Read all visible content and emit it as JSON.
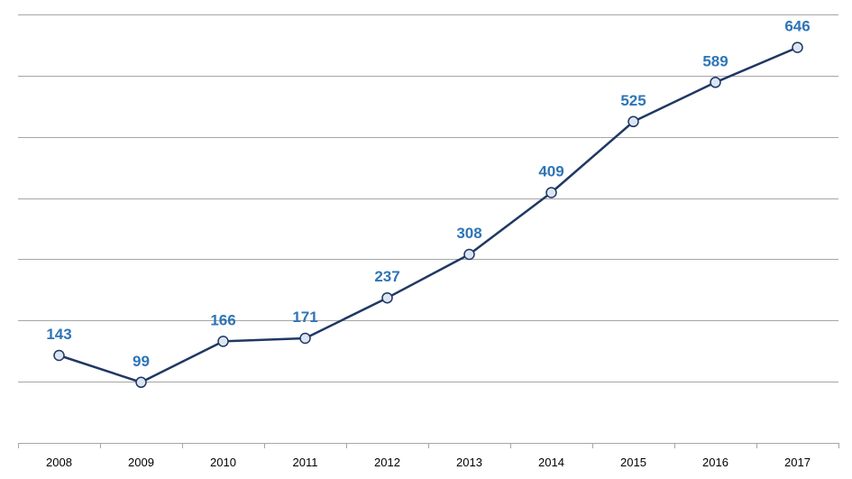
{
  "chart_data": {
    "type": "line",
    "categories": [
      "2008",
      "2009",
      "2010",
      "2011",
      "2012",
      "2013",
      "2014",
      "2015",
      "2016",
      "2017"
    ],
    "values": [
      143,
      99,
      166,
      171,
      237,
      308,
      409,
      525,
      589,
      646
    ],
    "ylim": [
      0,
      700
    ],
    "grid": true,
    "legend": "none",
    "colors": {
      "line": "#1f3864",
      "marker_fill": "#dce6f2",
      "labels": "#2e75b6",
      "grid": "#a6a6a6"
    }
  }
}
